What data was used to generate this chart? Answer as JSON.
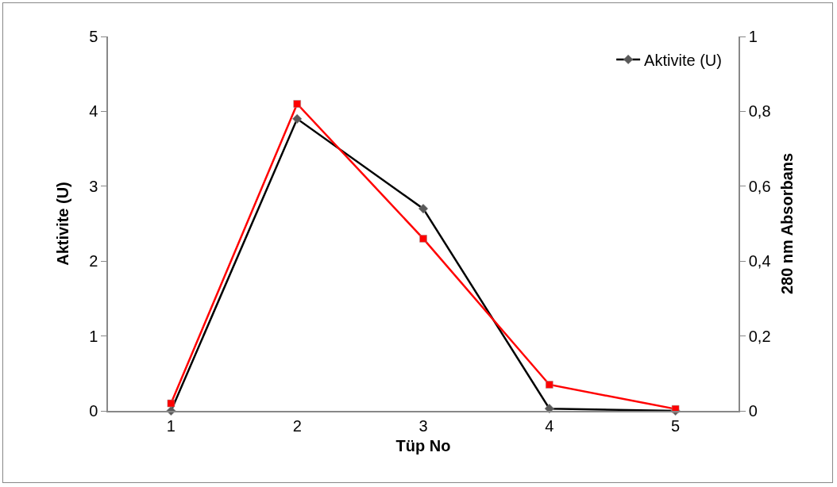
{
  "chart_data": {
    "type": "line",
    "xlabel": "Tüp No",
    "ylabel": "Aktivite (U)",
    "y2label": "280 nm Absorbans",
    "categories": [
      "1",
      "2",
      "3",
      "4",
      "5"
    ],
    "series": [
      {
        "name": "Aktivite (U)",
        "color": "#000000",
        "marker": "diamond",
        "values": [
          0,
          3.9,
          2.7,
          0.03,
          0
        ]
      },
      {
        "color": "#ff0000",
        "marker": "square",
        "axis": "y2",
        "values": [
          0.02,
          0.82,
          0.46,
          0.07,
          0.005
        ]
      }
    ],
    "ylim": [
      0,
      5
    ],
    "yticks": [
      0,
      1,
      2,
      3,
      4,
      5
    ],
    "y2lim": [
      0,
      1
    ],
    "y2ticks": [
      {
        "value": 0,
        "label": "0"
      },
      {
        "value": 0.2,
        "label": "0,2"
      },
      {
        "value": 0.4,
        "label": "0,4"
      },
      {
        "value": 0.6,
        "label": "0,6"
      },
      {
        "value": 0.8,
        "label": "0,8"
      },
      {
        "value": 1,
        "label": "1"
      }
    ],
    "grid": false,
    "legend": "top right"
  }
}
